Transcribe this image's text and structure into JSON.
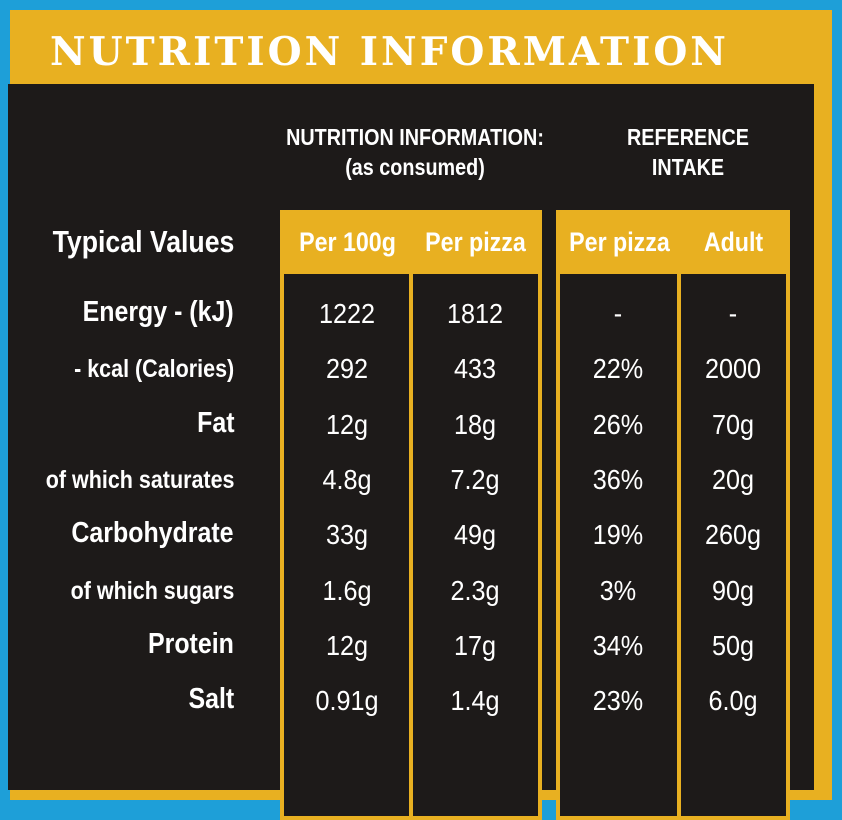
{
  "banner_title": "NUTRITION INFORMATION",
  "header_left": [
    "NUTRITION INFORMATION:",
    "(as consumed)"
  ],
  "header_right": [
    "REFERENCE",
    "INTAKE"
  ],
  "row_header": "Typical Values",
  "columns": [
    "Per 100g",
    "Per pizza",
    "Per pizza",
    "Adult"
  ],
  "rows": [
    {
      "label": "Energy - (kJ)",
      "values": [
        "1222",
        "1812",
        "-",
        "-"
      ]
    },
    {
      "label": "- kcal (Calories)",
      "values": [
        "292",
        "433",
        "22%",
        "2000"
      ]
    },
    {
      "label": "Fat",
      "values": [
        "12g",
        "18g",
        "26%",
        "70g"
      ]
    },
    {
      "label": "of which saturates",
      "values": [
        "4.8g",
        "7.2g",
        "36%",
        "20g"
      ]
    },
    {
      "label": "Carbohydrate",
      "values": [
        "33g",
        "49g",
        "19%",
        "260g"
      ]
    },
    {
      "label": "of which sugars",
      "values": [
        "1.6g",
        "2.3g",
        "3%",
        "90g"
      ]
    },
    {
      "label": "Protein",
      "values": [
        "12g",
        "17g",
        "34%",
        "50g"
      ]
    },
    {
      "label": "Salt",
      "values": [
        "0.91g",
        "1.4g",
        "23%",
        "6.0g"
      ]
    }
  ],
  "colors": {
    "background": "#1e9fd8",
    "accent": "#e8b021",
    "board": "#1d1a19",
    "text": "#ffffff"
  }
}
